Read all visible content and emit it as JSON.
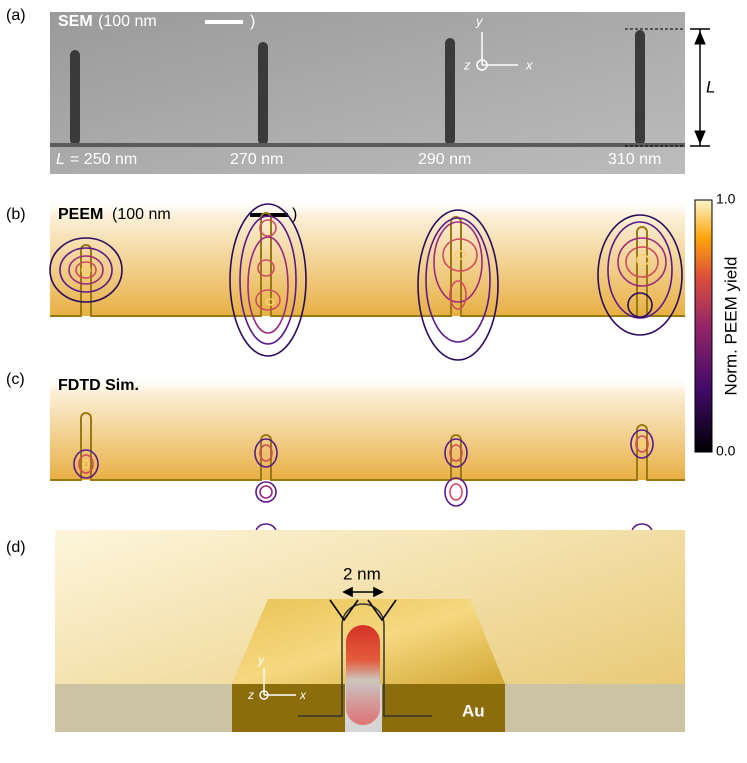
{
  "panel_a": {
    "label": "(a)",
    "title": "SEM",
    "scale": "(100 nm",
    "scale_close": ")",
    "axis_y": "y",
    "axis_z": "z",
    "axis_x": "x",
    "length_symbol": "L",
    "lengths": [
      "= 250 nm",
      "270 nm",
      "290 nm",
      "310 nm"
    ]
  },
  "panel_b": {
    "label": "(b)",
    "title": "PEEM",
    "scale": "(100 nm",
    "scale_close": ")"
  },
  "panel_c": {
    "label": "(c)",
    "title": "FDTD Sim."
  },
  "colorbar": {
    "max": "1.0",
    "min": "0.0",
    "label": "Norm. PEEM yield"
  },
  "panel_d": {
    "label": "(d)",
    "gap": "2 nm",
    "axis_y": "y",
    "axis_z": "z",
    "axis_x": "x",
    "material": "Au"
  }
}
